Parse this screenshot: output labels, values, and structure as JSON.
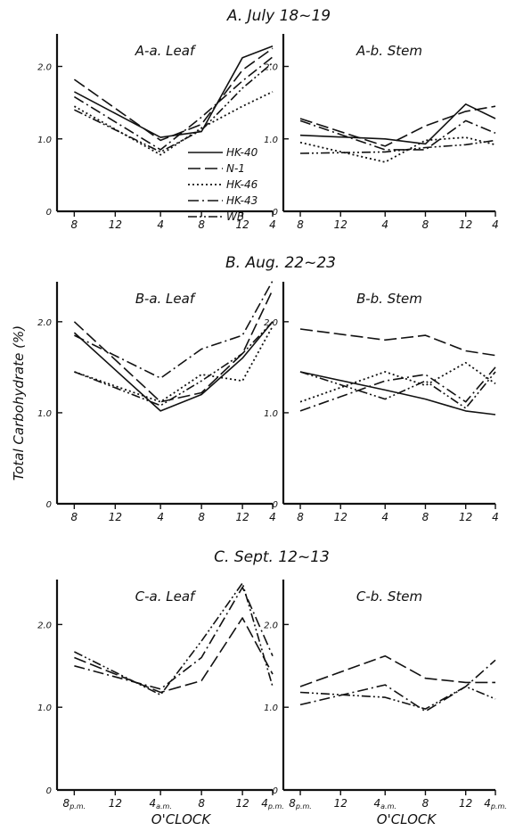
{
  "figure": {
    "ylabel": "Total Carbohydrate (%)",
    "xlabel": "O'CLOCK"
  },
  "series_styles": [
    {
      "name": "HK-40",
      "dash": "",
      "width": 1.6
    },
    {
      "name": "N-1",
      "dash": "14 5",
      "width": 1.6
    },
    {
      "name": "HK-46",
      "dash": "2 3",
      "width": 1.8
    },
    {
      "name": "HK-43",
      "dash": "12 4 2 4",
      "width": 1.6
    },
    {
      "name": "WB",
      "dash": "10 3 2 3 2 3",
      "width": 1.6
    }
  ],
  "chart_data": [
    {
      "type": "line",
      "section": "A. July 18~19",
      "title": "A-a. Leaf",
      "x": [
        "8",
        "12",
        "4",
        "8",
        "12",
        "4"
      ],
      "ylim": [
        0,
        2.4
      ],
      "yticks": [
        "0",
        "1.0",
        "2.0"
      ],
      "legend": [
        "HK-40",
        "N-1",
        "HK-46",
        "HK-43",
        "WB"
      ],
      "series": [
        {
          "name": "HK-40",
          "values": [
            1.65,
            null,
            1.02,
            1.1,
            2.12,
            2.28
          ]
        },
        {
          "name": "N-1",
          "values": [
            1.82,
            null,
            0.98,
            1.2,
            1.95,
            2.25
          ]
        },
        {
          "name": "HK-46",
          "values": [
            1.45,
            null,
            0.78,
            1.15,
            1.45,
            1.65
          ]
        },
        {
          "name": "HK-43",
          "values": [
            1.58,
            null,
            0.85,
            1.3,
            1.8,
            2.13
          ]
        },
        {
          "name": "WB",
          "values": [
            1.4,
            null,
            0.82,
            1.12,
            1.7,
            2.05
          ]
        }
      ]
    },
    {
      "type": "line",
      "section": "",
      "title": "A-b. Stem",
      "x": [
        "8",
        "12",
        "4",
        "8",
        "12",
        "4"
      ],
      "ylim": [
        0,
        2.4
      ],
      "yticks": [
        "0",
        "1.0",
        "2.0"
      ],
      "series": [
        {
          "name": "HK-40",
          "values": [
            1.05,
            null,
            1.0,
            0.93,
            1.48,
            1.28
          ]
        },
        {
          "name": "N-1",
          "values": [
            1.28,
            null,
            0.9,
            1.18,
            1.38,
            1.45
          ]
        },
        {
          "name": "HK-46",
          "values": [
            0.95,
            null,
            0.68,
            0.98,
            1.02,
            0.92
          ]
        },
        {
          "name": "HK-43",
          "values": [
            1.25,
            null,
            0.85,
            0.85,
            1.25,
            1.08
          ]
        },
        {
          "name": "WB",
          "values": [
            0.8,
            null,
            0.82,
            0.88,
            0.92,
            0.98
          ]
        }
      ]
    },
    {
      "type": "line",
      "section": "B. Aug. 22~23",
      "title": "B-a. Leaf",
      "x": [
        "8",
        "12",
        "4",
        "8",
        "12",
        "4"
      ],
      "ylim": [
        0,
        2.4
      ],
      "yticks": [
        "0",
        "1.0",
        "2.0"
      ],
      "series": [
        {
          "name": "HK-40",
          "values": [
            1.88,
            null,
            1.02,
            1.2,
            1.6,
            2.0
          ]
        },
        {
          "name": "N-1",
          "values": [
            2.0,
            null,
            1.12,
            1.22,
            1.65,
            2.35
          ]
        },
        {
          "name": "HK-46",
          "values": [
            1.45,
            null,
            1.12,
            1.42,
            1.35,
            1.95
          ]
        },
        {
          "name": "HK-43",
          "values": [
            1.85,
            null,
            1.38,
            1.7,
            1.85,
            2.45
          ]
        },
        {
          "name": "WB",
          "values": [
            1.45,
            null,
            1.08,
            1.35,
            1.65,
            2.0
          ]
        }
      ]
    },
    {
      "type": "line",
      "section": "",
      "title": "B-b. Stem",
      "x": [
        "8",
        "12",
        "4",
        "8",
        "12",
        "4"
      ],
      "ylim": [
        0,
        2.4
      ],
      "yticks": [
        "0",
        "1.0",
        "2.0"
      ],
      "series": [
        {
          "name": "HK-40",
          "values": [
            1.45,
            null,
            1.25,
            1.15,
            1.02,
            0.98
          ]
        },
        {
          "name": "N-1",
          "values": [
            1.92,
            null,
            1.8,
            1.85,
            1.68,
            1.63
          ]
        },
        {
          "name": "HK-46",
          "values": [
            1.12,
            null,
            1.45,
            1.3,
            1.55,
            1.32
          ]
        },
        {
          "name": "HK-43",
          "values": [
            1.02,
            null,
            1.35,
            1.42,
            1.12,
            1.5
          ]
        },
        {
          "name": "WB",
          "values": [
            1.45,
            null,
            1.15,
            1.35,
            1.05,
            1.45
          ]
        }
      ]
    },
    {
      "type": "line",
      "section": "C. Sept. 12~13",
      "title": "C-a. Leaf",
      "x": [
        "8p.m.",
        "12",
        "4a.m.",
        "8",
        "12",
        "4p.m."
      ],
      "ylim": [
        0,
        2.5
      ],
      "yticks": [
        "0",
        "1.0",
        "2.0"
      ],
      "series": [
        {
          "name": "N-1",
          "values": [
            1.6,
            null,
            1.18,
            1.32,
            2.08,
            1.4
          ]
        },
        {
          "name": "HK-43",
          "values": [
            1.5,
            null,
            1.22,
            1.6,
            2.45,
            1.62
          ]
        },
        {
          "name": "WB",
          "values": [
            1.67,
            null,
            1.15,
            1.8,
            2.5,
            1.25
          ]
        }
      ]
    },
    {
      "type": "line",
      "section": "",
      "title": "C-b. Stem",
      "x": [
        "8p.m.",
        "12",
        "4a.m.",
        "8",
        "12",
        "4p.m."
      ],
      "ylim": [
        0,
        2.5
      ],
      "yticks": [
        "0",
        "1.0",
        "2.0"
      ],
      "series": [
        {
          "name": "N-1",
          "values": [
            1.25,
            null,
            1.62,
            1.35,
            1.3,
            1.3
          ]
        },
        {
          "name": "HK-43",
          "values": [
            1.03,
            null,
            1.27,
            0.95,
            1.25,
            1.57
          ]
        },
        {
          "name": "WB",
          "values": [
            1.18,
            null,
            1.12,
            0.98,
            1.25,
            1.1
          ]
        }
      ]
    }
  ]
}
